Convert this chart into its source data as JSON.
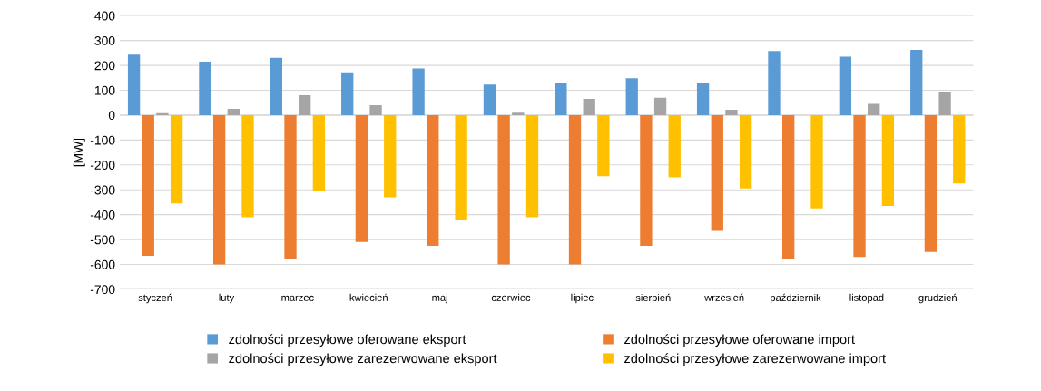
{
  "chart_data": {
    "type": "bar",
    "ylabel": "[MW]",
    "categories": [
      "styczeń",
      "luty",
      "marzec",
      "kwiecień",
      "maj",
      "czerwiec",
      "lipiec",
      "sierpień",
      "wrzesień",
      "październik",
      "listopad",
      "grudzień"
    ],
    "series": [
      {
        "name": "zdolności przesyłowe oferowane eksport",
        "color": "#5b9bd5",
        "values": [
          243,
          215,
          230,
          172,
          188,
          123,
          128,
          148,
          128,
          258,
          235,
          262
        ]
      },
      {
        "name": "zdolności przesyłowe oferowane import",
        "color": "#ed7d31",
        "values": [
          -565,
          -600,
          -580,
          -510,
          -525,
          -600,
          -600,
          -525,
          -465,
          -580,
          -570,
          -550
        ]
      },
      {
        "name": "zdolności przesyłowe zarezerwowane eksport",
        "color": "#a5a5a5",
        "values": [
          8,
          25,
          80,
          40,
          0,
          10,
          65,
          70,
          22,
          0,
          45,
          95
        ]
      },
      {
        "name": "zdolności przesyłowe zarezerwowane import",
        "color": "#ffc000",
        "values": [
          -355,
          -410,
          -305,
          -330,
          -420,
          -410,
          -245,
          -250,
          -295,
          -375,
          -365,
          -275
        ]
      }
    ],
    "ylim": [
      -700,
      400
    ],
    "yticks": [
      -700,
      -600,
      -500,
      -400,
      -300,
      -200,
      -100,
      0,
      100,
      200,
      300,
      400
    ],
    "grid": "y",
    "legend": "bottom"
  }
}
